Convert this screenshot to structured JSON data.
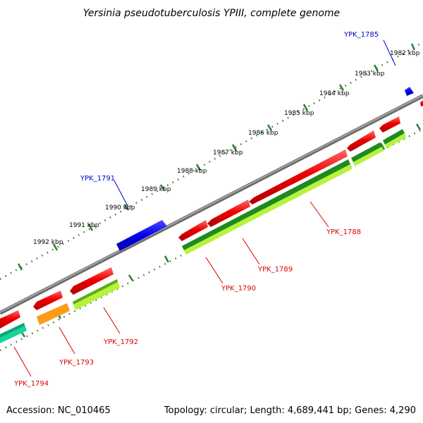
{
  "title": "Yersinia pseudotuberculosis YPIII, complete genome",
  "footer": {
    "accession": "Accession: NC_010465",
    "topology": "Topology: circular; Length: 4,689,441 bp; Genes: 4,290"
  },
  "colors": {
    "backbone": "#8c8c8c",
    "ticks": "#2f7d2f",
    "forward_gene": "#0000ee",
    "reverse_gene": "#ee0000",
    "label_red": "#dd0000",
    "label_blue": "#0000cc"
  },
  "kbp_labels": [
    "1982 kbp",
    "1983 kbp",
    "1984 kbp",
    "1985 kbp",
    "1986 kbp",
    "1987 kbp",
    "1988 kbp",
    "1989 kbp",
    "1990 kbp",
    "1991 kbp",
    "1992 kbp"
  ],
  "gene_labels": {
    "ypk_1785": "YPK_1785",
    "ypk_1791": "YPK_1791",
    "ypk_1788": "YPK_1788",
    "ypk_1789": "YPK_1789",
    "ypk_1790": "YPK_1790",
    "ypk_1792": "YPK_1792",
    "ypk_1793": "YPK_1793",
    "ypk_1794": "YPK_1794"
  }
}
